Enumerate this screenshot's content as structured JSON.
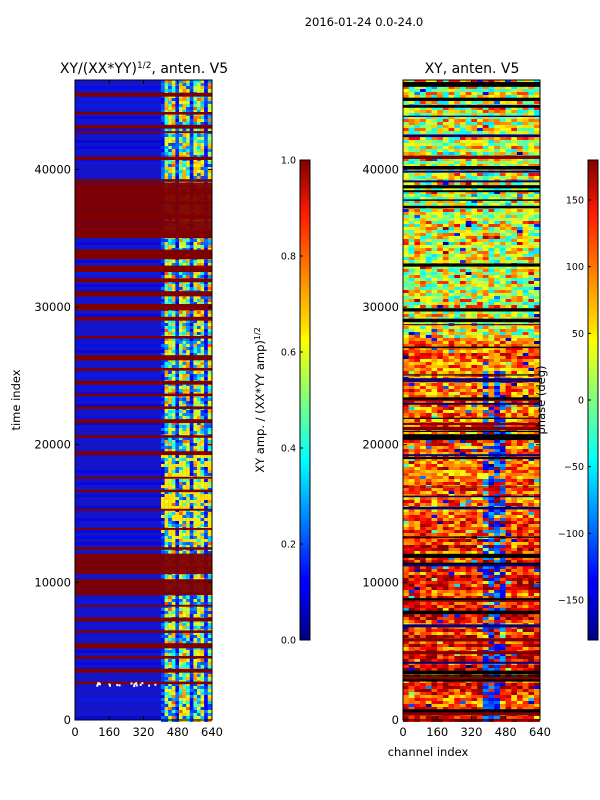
{
  "figure": {
    "suptitle": "2016-01-24 0.0-24.0"
  },
  "chart_data": [
    {
      "type": "heatmap",
      "title": "XY/(XX*YY)^(1/2), anten. V5",
      "title_main": "XY/(XX*YY)",
      "title_sup": "1/2",
      "title_rest": ", anten. V5",
      "xlabel": "",
      "ylabel": "time index",
      "xlim": [
        0,
        640
      ],
      "ylim": [
        0,
        46500
      ],
      "xticks": [
        0,
        160,
        320,
        480,
        640
      ],
      "yticks": [
        0,
        10000,
        20000,
        30000,
        40000
      ],
      "colormap": "jet",
      "colorbar": {
        "label": "XY amp. / (XX*YY amp)^(1/2)",
        "label_main": "XY amp. / (XX*YY amp)",
        "label_sup": "1/2",
        "min": 0.0,
        "max": 1.0,
        "ticks": [
          "0.0",
          "0.2",
          "0.4",
          "0.6",
          "0.8",
          "1.0"
        ]
      }
    },
    {
      "type": "heatmap",
      "title": "XY, anten. V5",
      "xlabel": "channel index",
      "ylabel": "",
      "xlim": [
        0,
        640
      ],
      "ylim": [
        0,
        46500
      ],
      "xticks": [
        0,
        160,
        320,
        480,
        640
      ],
      "yticks": [
        0,
        10000,
        20000,
        30000,
        40000
      ],
      "colormap": "jet",
      "colorbar": {
        "label": "phase (deg)",
        "min": -180,
        "max": 180,
        "ticks": [
          "−150",
          "−100",
          "−50",
          "0",
          "50",
          "100",
          "150"
        ]
      }
    }
  ]
}
